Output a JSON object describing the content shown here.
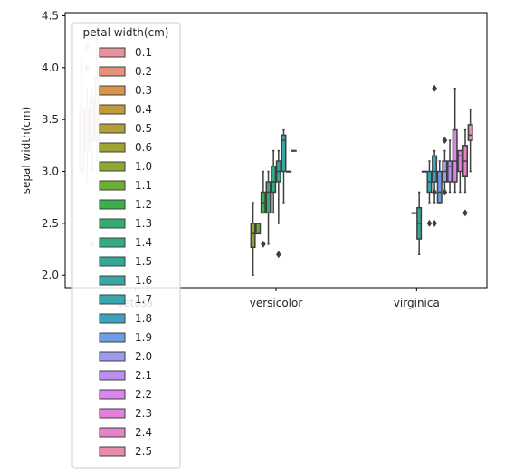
{
  "chart_data": {
    "type": "box",
    "title": "",
    "xlabel": "",
    "ylabel": "sepal width(cm)",
    "ylim": [
      1.88,
      4.53
    ],
    "yticks": [
      "2.0",
      "2.5",
      "3.0",
      "3.5",
      "4.0",
      "4.5"
    ],
    "categories": [
      "setosa",
      "versicolor",
      "virginica"
    ],
    "legend": {
      "title": "petal width(cm)",
      "placement": "upper-left",
      "entries": [
        "0.1",
        "0.2",
        "0.3",
        "0.4",
        "0.5",
        "0.6",
        "1.0",
        "1.1",
        "1.2",
        "1.3",
        "1.4",
        "1.5",
        "1.6",
        "1.7",
        "1.8",
        "1.9",
        "2.0",
        "2.1",
        "2.2",
        "2.3",
        "2.4",
        "2.5"
      ]
    },
    "colors": [
      "#e8919c",
      "#e6927a",
      "#d7964a",
      "#c39a37",
      "#b29f35",
      "#a1a334",
      "#8ea833",
      "#6dae35",
      "#3aaf4b",
      "#35ac6f",
      "#36a986",
      "#37a795",
      "#38a6a1",
      "#39a5ae",
      "#3ba3bd",
      "#6d9ee8",
      "#9e9bef",
      "#b98ff0",
      "#d985ec",
      "#e37fdc",
      "#e683c4",
      "#e88aab"
    ],
    "boxes": [
      {
        "category": "setosa",
        "group": "0.1",
        "q1": 3.0,
        "median": 3.4,
        "q3": 3.6,
        "low": 3.0,
        "high": 4.1,
        "outliers": [],
        "faded": true
      },
      {
        "category": "setosa",
        "group": "0.2",
        "q1": 3.2,
        "median": 3.4,
        "q3": 3.6,
        "low": 2.9,
        "high": 3.8,
        "outliers": [
          4.2,
          4.0
        ],
        "faded": true
      },
      {
        "category": "setosa",
        "group": "0.3",
        "q1": 3.3,
        "median": 3.4,
        "q3": 3.7,
        "low": 3.0,
        "high": 3.8,
        "outliers": [
          2.3
        ],
        "faded": true
      },
      {
        "category": "setosa",
        "group": "0.4",
        "q1": 3.3,
        "median": 3.5,
        "q3": 3.9,
        "low": 3.1,
        "high": 4.4,
        "outliers": [],
        "faded": true
      },
      {
        "category": "setosa",
        "group": "0.5",
        "q1": 3.3,
        "median": 3.3,
        "q3": 3.3,
        "low": 3.3,
        "high": 3.3,
        "outliers": [],
        "faded": true
      },
      {
        "category": "setosa",
        "group": "0.6",
        "q1": 3.5,
        "median": 3.5,
        "q3": 3.5,
        "low": 3.5,
        "high": 3.5,
        "outliers": [],
        "faded": true
      },
      {
        "category": "versicolor",
        "group": "1.0",
        "q1": 2.27,
        "median": 2.4,
        "q3": 2.5,
        "low": 2.0,
        "high": 2.7,
        "outliers": []
      },
      {
        "category": "versicolor",
        "group": "1.1",
        "q1": 2.4,
        "median": 2.5,
        "q3": 2.5,
        "low": 2.4,
        "high": 2.5,
        "outliers": []
      },
      {
        "category": "versicolor",
        "group": "1.2",
        "q1": 2.6,
        "median": 2.7,
        "q3": 2.8,
        "low": 2.6,
        "high": 3.0,
        "outliers": [
          2.3
        ]
      },
      {
        "category": "versicolor",
        "group": "1.3",
        "q1": 2.6,
        "median": 2.8,
        "q3": 2.9,
        "low": 2.3,
        "high": 3.0,
        "outliers": []
      },
      {
        "category": "versicolor",
        "group": "1.4",
        "q1": 2.8,
        "median": 2.9,
        "q3": 3.05,
        "low": 2.6,
        "high": 3.2,
        "outliers": []
      },
      {
        "category": "versicolor",
        "group": "1.5",
        "q1": 2.9,
        "median": 3.0,
        "q3": 3.1,
        "low": 2.5,
        "high": 3.2,
        "outliers": [
          2.2
        ]
      },
      {
        "category": "versicolor",
        "group": "1.6",
        "q1": 3.0,
        "median": 3.3,
        "q3": 3.35,
        "low": 2.7,
        "high": 3.4,
        "outliers": []
      },
      {
        "category": "versicolor",
        "group": "1.7",
        "q1": 3.0,
        "median": 3.0,
        "q3": 3.0,
        "low": 3.0,
        "high": 3.0,
        "outliers": []
      },
      {
        "category": "versicolor",
        "group": "1.8",
        "q1": 3.2,
        "median": 3.2,
        "q3": 3.2,
        "low": 3.2,
        "high": 3.2,
        "outliers": []
      },
      {
        "category": "virginica",
        "group": "1.4",
        "q1": 2.6,
        "median": 2.6,
        "q3": 2.6,
        "low": 2.6,
        "high": 2.6,
        "outliers": []
      },
      {
        "category": "virginica",
        "group": "1.5",
        "q1": 2.35,
        "median": 2.5,
        "q3": 2.65,
        "low": 2.2,
        "high": 2.8,
        "outliers": []
      },
      {
        "category": "virginica",
        "group": "1.6",
        "q1": 3.0,
        "median": 3.0,
        "q3": 3.0,
        "low": 3.0,
        "high": 3.0,
        "outliers": []
      },
      {
        "category": "virginica",
        "group": "1.7",
        "q1": 2.8,
        "median": 2.9,
        "q3": 3.0,
        "low": 2.7,
        "high": 3.1,
        "outliers": [
          2.5
        ]
      },
      {
        "category": "virginica",
        "group": "1.8",
        "q1": 2.9,
        "median": 3.0,
        "q3": 3.15,
        "low": 2.7,
        "high": 3.2,
        "outliers": [
          2.5,
          3.8,
          2.8
        ]
      },
      {
        "category": "virginica",
        "group": "1.9",
        "q1": 2.7,
        "median": 2.8,
        "q3": 3.0,
        "low": 2.7,
        "high": 3.1,
        "outliers": []
      },
      {
        "category": "virginica",
        "group": "2.0",
        "q1": 2.9,
        "median": 3.0,
        "q3": 3.1,
        "low": 2.8,
        "high": 3.2,
        "outliers": [
          3.3,
          2.8
        ]
      },
      {
        "category": "virginica",
        "group": "2.1",
        "q1": 2.9,
        "median": 3.05,
        "q3": 3.1,
        "low": 2.8,
        "high": 3.3,
        "outliers": []
      },
      {
        "category": "virginica",
        "group": "2.2",
        "q1": 2.9,
        "median": 3.1,
        "q3": 3.4,
        "low": 2.8,
        "high": 3.8,
        "outliers": []
      },
      {
        "category": "virginica",
        "group": "2.3",
        "q1": 3.0,
        "median": 3.15,
        "q3": 3.2,
        "low": 2.8,
        "high": 3.2,
        "outliers": []
      },
      {
        "category": "virginica",
        "group": "2.4",
        "q1": 2.95,
        "median": 3.1,
        "q3": 3.25,
        "low": 2.8,
        "high": 3.4,
        "outliers": [
          2.6
        ]
      },
      {
        "category": "virginica",
        "group": "2.5",
        "q1": 3.3,
        "median": 3.35,
        "q3": 3.45,
        "low": 3.0,
        "high": 3.6,
        "outliers": []
      }
    ]
  }
}
